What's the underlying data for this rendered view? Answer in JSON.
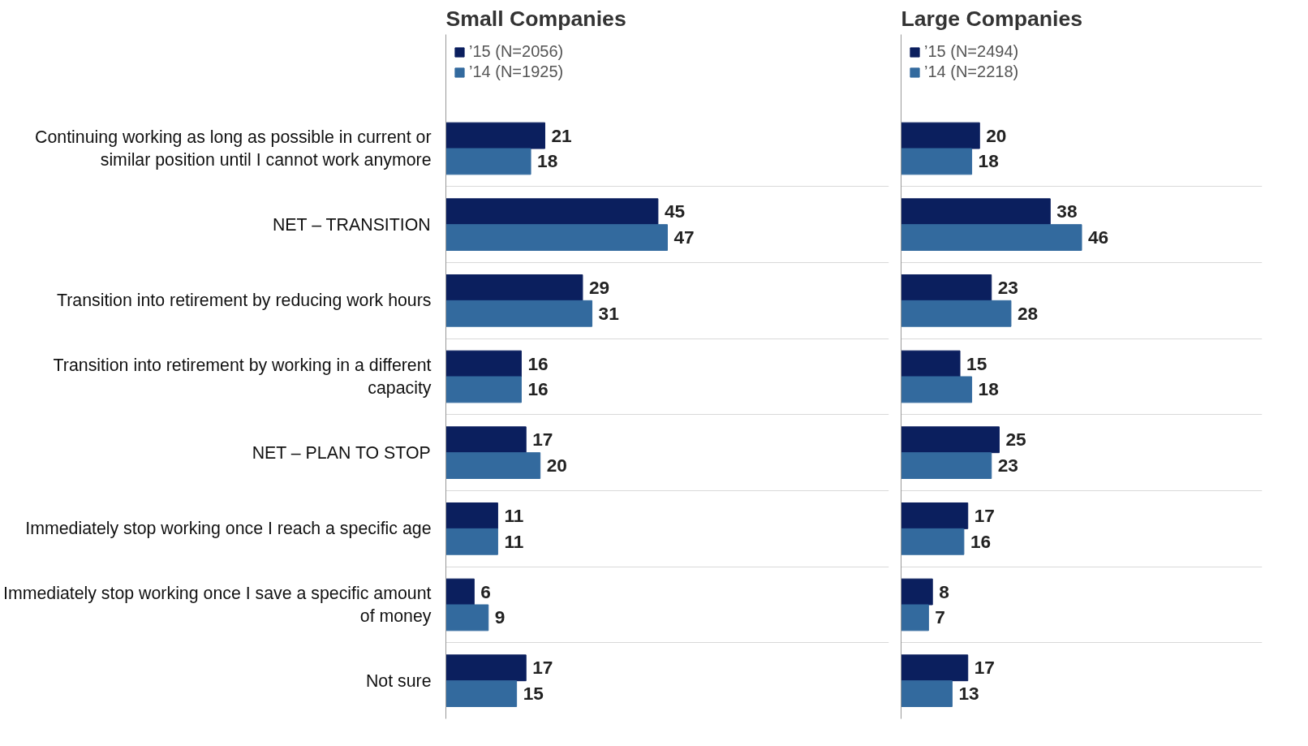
{
  "chart_data": [
    {
      "type": "bar",
      "orientation": "horizontal",
      "title": "Small Companies",
      "categories": [
        "Continuing working as long as possible in current or similar position until I cannot work anymore",
        "NET – TRANSITION",
        "Transition into retirement by reducing work hours",
        "Transition into retirement by working in a different capacity",
        "NET – PLAN TO STOP",
        "Immediately stop working once I reach a specific age",
        "Immediately stop working once I save a specific amount of money",
        "Not sure"
      ],
      "series": [
        {
          "name": "’15 (N=2056)",
          "color": "#0b1f5e",
          "values": [
            21,
            45,
            29,
            16,
            17,
            11,
            6,
            17
          ]
        },
        {
          "name": "’14 (N=1925)",
          "color": "#336a9e",
          "values": [
            18,
            47,
            31,
            16,
            20,
            11,
            9,
            15
          ]
        }
      ],
      "data_labels": true,
      "legend": "top left",
      "grid": "y",
      "tick_labels": "y"
    },
    {
      "type": "bar",
      "orientation": "horizontal",
      "title": "Large Companies",
      "categories": [
        "Continuing working as long as possible in current or similar position until I cannot work anymore",
        "NET – TRANSITION",
        "Transition into retirement by reducing work hours",
        "Transition into retirement by working in a different capacity",
        "NET – PLAN TO STOP",
        "Immediately stop working once I reach a specific age",
        "Immediately stop working once I save a specific amount of money",
        "Not sure"
      ],
      "series": [
        {
          "name": "’15 (N=2494)",
          "color": "#0b1f5e",
          "values": [
            20,
            38,
            23,
            15,
            25,
            17,
            8,
            17
          ]
        },
        {
          "name": "’14 (N=2218)",
          "color": "#336a9e",
          "values": [
            18,
            46,
            28,
            18,
            23,
            16,
            7,
            13
          ]
        }
      ],
      "data_labels": true,
      "legend": "top left",
      "grid": "y",
      "tick_labels": false
    }
  ]
}
